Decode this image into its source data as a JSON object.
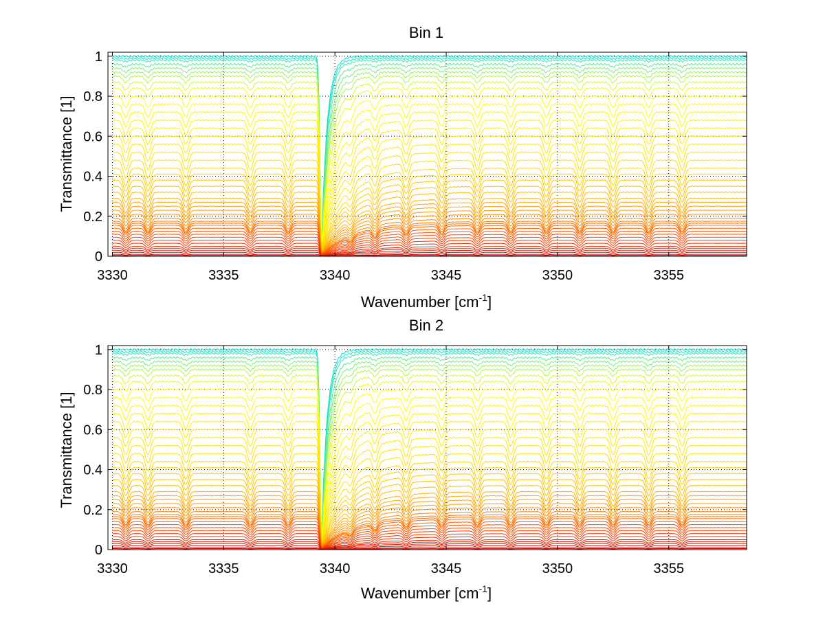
{
  "figure": {
    "background": "#ffffff"
  },
  "chart_data": [
    {
      "type": "line",
      "title": "Bin 1",
      "xlabel": "Wavenumber [cm",
      "xlabel_sup": "-1",
      "xlabel_suffix": "]",
      "ylabel": "Transmittance [1]",
      "xlim": [
        3329.8,
        3358.5
      ],
      "ylim": [
        0,
        1.02
      ],
      "xticks": [
        3330,
        3335,
        3340,
        3345,
        3350,
        3355
      ],
      "xtick_labels": [
        "3330",
        "3335",
        "3340",
        "3345",
        "3350",
        "3355"
      ],
      "yticks": [
        0,
        0.2,
        0.4,
        0.6,
        0.8,
        1
      ],
      "ytick_labels": [
        "0",
        "0.2",
        "0.4",
        "0.6",
        "0.8",
        "1"
      ],
      "grid": true,
      "grid_style": "dotted",
      "colormap": [
        "#cc0000",
        "#ff4400",
        "#ff9900",
        "#ffdd00",
        "#ffff00",
        "#00dddd"
      ],
      "series_description": "family of many transmittance spectra; strong absorption line near 3339.4",
      "lines": {
        "x_start": 3330.0,
        "x_end": 3358.5,
        "strong_line_center": 3339.4,
        "weak_line_centers": [
          3330.6,
          3331.6,
          3333.3,
          3336.2,
          3337.9,
          3340.7,
          3341.8,
          3343.2,
          3344.8,
          3346.4,
          3347.9,
          3349.5,
          3351.0,
          3352.5,
          3354.1,
          3355.6
        ],
        "levels": [
          1.0,
          0.99,
          0.98,
          0.96,
          0.94,
          0.92,
          0.9,
          0.87,
          0.84,
          0.8,
          0.76,
          0.72,
          0.68,
          0.64,
          0.6,
          0.56,
          0.52,
          0.48,
          0.44,
          0.41,
          0.38,
          0.35,
          0.32,
          0.29,
          0.27,
          0.25,
          0.23,
          0.21,
          0.19,
          0.175,
          0.165,
          0.155,
          0.14,
          0.125,
          0.11,
          0.095,
          0.08,
          0.065,
          0.05,
          0.04,
          0.03,
          0.02,
          0.01,
          0.005
        ]
      }
    },
    {
      "type": "line",
      "title": "Bin 2",
      "xlabel": "Wavenumber [cm",
      "xlabel_sup": "-1",
      "xlabel_suffix": "]",
      "ylabel": "Transmittance [1]",
      "xlim": [
        3329.8,
        3358.5
      ],
      "ylim": [
        0,
        1.02
      ],
      "xticks": [
        3330,
        3335,
        3340,
        3345,
        3350,
        3355
      ],
      "xtick_labels": [
        "3330",
        "3335",
        "3340",
        "3345",
        "3350",
        "3355"
      ],
      "yticks": [
        0,
        0.2,
        0.4,
        0.6,
        0.8,
        1
      ],
      "ytick_labels": [
        "0",
        "0.2",
        "0.4",
        "0.6",
        "0.8",
        "1"
      ],
      "grid": true,
      "grid_style": "dotted",
      "colormap": [
        "#cc0000",
        "#ff4400",
        "#ff9900",
        "#ffdd00",
        "#ffff00",
        "#00dddd"
      ],
      "series_description": "family of many transmittance spectra; strong absorption line near 3339.4",
      "lines": {
        "x_start": 3330.0,
        "x_end": 3358.5,
        "strong_line_center": 3339.4,
        "weak_line_centers": [
          3330.6,
          3331.6,
          3333.3,
          3336.2,
          3337.9,
          3340.7,
          3341.8,
          3343.2,
          3344.8,
          3346.4,
          3347.9,
          3349.5,
          3351.0,
          3352.5,
          3354.1,
          3355.6
        ],
        "levels": [
          1.0,
          0.99,
          0.98,
          0.96,
          0.94,
          0.92,
          0.9,
          0.87,
          0.84,
          0.8,
          0.76,
          0.72,
          0.68,
          0.64,
          0.6,
          0.56,
          0.52,
          0.48,
          0.44,
          0.41,
          0.38,
          0.35,
          0.32,
          0.29,
          0.27,
          0.25,
          0.23,
          0.21,
          0.19,
          0.175,
          0.165,
          0.155,
          0.14,
          0.125,
          0.11,
          0.095,
          0.08,
          0.065,
          0.05,
          0.04,
          0.03,
          0.02,
          0.01,
          0.005
        ]
      }
    }
  ]
}
